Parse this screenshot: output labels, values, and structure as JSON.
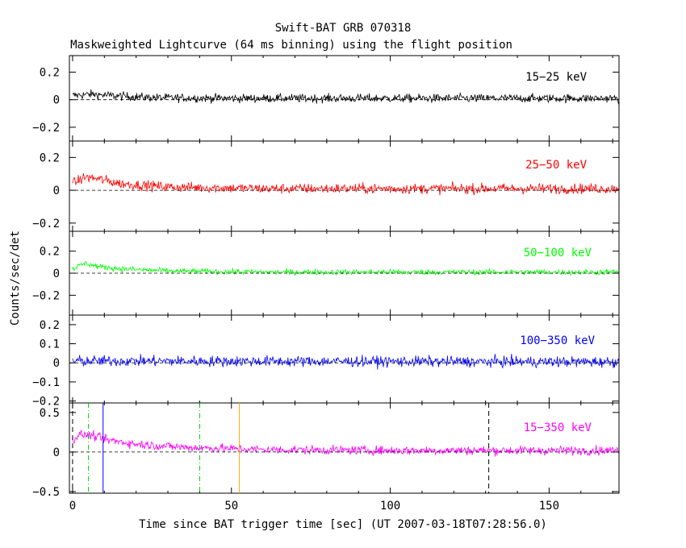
{
  "chart_data": {
    "type": "line",
    "title": "Swift-BAT GRB 070318",
    "subtitle": "Maskweighted Lightcurve (64 ms binning) using the flight position",
    "xlabel": "Time since BAT trigger time [sec] (UT 2007-03-18T07:28:56.0)",
    "ylabel": "Counts/sec/det",
    "xlim": [
      -1,
      172
    ],
    "x_ticks": [
      0,
      50,
      100,
      150
    ],
    "x_tick_labels": [
      "0",
      "50",
      "100",
      "150"
    ],
    "grid": false,
    "panels": [
      {
        "band": "15−25 keV",
        "color": "#000000",
        "ylim": [
          -0.3,
          0.32
        ],
        "y_ticks": [
          -0.2,
          0,
          0.2
        ],
        "y_tick_labels": [
          "−0.2",
          "0",
          "0.2"
        ],
        "noise": 0.022,
        "profile": [
          [
            0,
            0.03
          ],
          [
            6,
            0.04
          ],
          [
            12,
            0.03
          ],
          [
            25,
            0.015
          ],
          [
            50,
            0.01
          ],
          [
            172,
            0.01
          ]
        ]
      },
      {
        "band": "25−50 keV",
        "color": "#ff0000",
        "ylim": [
          -0.25,
          0.3
        ],
        "y_ticks": [
          -0.2,
          0,
          0.2
        ],
        "y_tick_labels": [
          "−0.2",
          "0",
          "0.2"
        ],
        "noise": 0.022,
        "profile": [
          [
            0,
            0.04
          ],
          [
            4,
            0.08
          ],
          [
            8,
            0.07
          ],
          [
            15,
            0.04
          ],
          [
            30,
            0.02
          ],
          [
            60,
            0.01
          ],
          [
            172,
            0.01
          ]
        ]
      },
      {
        "band": "50−100 keV",
        "color": "#00ff00",
        "ylim": [
          -0.38,
          0.38
        ],
        "y_ticks": [
          -0.2,
          0,
          0.2
        ],
        "y_tick_labels": [
          "−0.2",
          "0",
          "0.2"
        ],
        "noise": 0.018,
        "profile": [
          [
            0,
            0.04
          ],
          [
            4,
            0.09
          ],
          [
            8,
            0.06
          ],
          [
            15,
            0.04
          ],
          [
            30,
            0.02
          ],
          [
            60,
            0.01
          ],
          [
            172,
            0.01
          ]
        ]
      },
      {
        "band": "100−350 keV",
        "color": "#0000ff",
        "ylim": [
          -0.21,
          0.25
        ],
        "y_ticks": [
          -0.2,
          -0.1,
          0,
          0.1,
          0.2
        ],
        "y_tick_labels": [
          "−0.2",
          "−0.1",
          "0",
          "0.1",
          "0.2"
        ],
        "noise": 0.02,
        "profile": [
          [
            0,
            0.01
          ],
          [
            172,
            0.005
          ]
        ]
      },
      {
        "band": "15−350 keV",
        "color": "#ff00ff",
        "ylim": [
          -0.52,
          0.62
        ],
        "y_ticks": [
          -0.5,
          0,
          0.5
        ],
        "y_tick_labels": [
          "−0.5",
          "0",
          "0.5"
        ],
        "noise": 0.04,
        "profile": [
          [
            0,
            0.15
          ],
          [
            2,
            0.22
          ],
          [
            6,
            0.21
          ],
          [
            10,
            0.16
          ],
          [
            20,
            0.1
          ],
          [
            35,
            0.06
          ],
          [
            60,
            0.03
          ],
          [
            100,
            0.02
          ],
          [
            172,
            0.02
          ]
        ]
      }
    ],
    "markers": [
      {
        "x": 0,
        "color": "#000000",
        "style": "dashed"
      },
      {
        "x": 5,
        "color": "#00cc00",
        "style": "dashdot"
      },
      {
        "x": 9.6,
        "color": "#0000ff",
        "style": "solid"
      },
      {
        "x": 40,
        "color": "#00cc00",
        "style": "dashdot"
      },
      {
        "x": 52.5,
        "color": "#ffa500",
        "style": "solid"
      },
      {
        "x": 131,
        "color": "#000000",
        "style": "dashed"
      }
    ]
  }
}
